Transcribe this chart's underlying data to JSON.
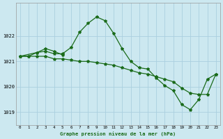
{
  "title": "Graphe pression niveau de la mer (hPa)",
  "bg_color": "#cce8f0",
  "grid_color": "#aacfdf",
  "line_color": "#1a6b1a",
  "xlim": [
    -0.5,
    23.5
  ],
  "ylim": [
    1018.5,
    1023.3
  ],
  "yticks": [
    1019,
    1020,
    1021,
    1022
  ],
  "xticks": [
    0,
    1,
    2,
    3,
    4,
    5,
    6,
    7,
    8,
    9,
    10,
    11,
    12,
    13,
    14,
    15,
    16,
    17,
    18,
    19,
    20,
    21,
    22,
    23
  ],
  "series1_x": [
    0,
    1,
    2,
    3,
    4,
    5,
    6,
    7,
    8,
    9,
    10,
    11,
    12,
    13,
    14,
    15,
    16,
    17,
    18,
    19,
    20,
    21,
    22,
    23
  ],
  "series1_y": [
    1021.2,
    1021.2,
    1021.35,
    1021.4,
    1021.3,
    1021.3,
    1021.55,
    1022.15,
    1022.5,
    1022.75,
    1022.6,
    1022.1,
    1021.5,
    1021.0,
    1020.75,
    1020.7,
    1020.35,
    1020.05,
    1019.85,
    1019.3,
    1019.1,
    1019.5,
    1020.3,
    1020.5
  ],
  "series2_x": [
    0,
    1,
    2,
    3,
    4,
    5,
    6,
    7,
    8,
    9,
    10,
    11,
    12,
    13,
    14,
    15,
    16,
    17,
    18,
    19,
    20,
    21,
    22,
    23
  ],
  "series2_y": [
    1021.2,
    1021.2,
    1021.2,
    1021.2,
    1021.1,
    1021.1,
    1021.05,
    1021.0,
    1021.0,
    1020.95,
    1020.9,
    1020.85,
    1020.75,
    1020.65,
    1020.55,
    1020.5,
    1020.4,
    1020.3,
    1020.2,
    1019.95,
    1019.75,
    1019.7,
    1019.7,
    1020.5
  ],
  "series3_x": [
    0,
    2,
    3,
    4,
    5
  ],
  "series3_y": [
    1021.2,
    1021.35,
    1021.5,
    1021.4,
    1021.25
  ]
}
